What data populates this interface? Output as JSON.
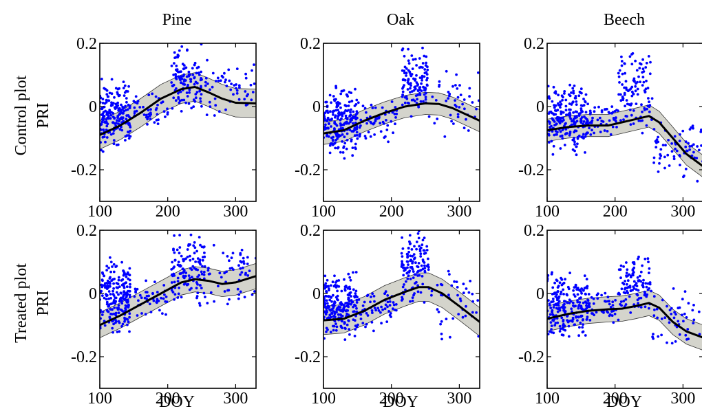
{
  "figure": {
    "columns": [
      "Pine",
      "Oak",
      "Beech"
    ],
    "rows": [
      {
        "line1": "Control plot",
        "line2": "PRI"
      },
      {
        "line1": "Treated plot",
        "line2": "PRI"
      }
    ],
    "xlabel": "DOY",
    "colors": {
      "points": "#0000ff",
      "band_fill": "#d4d4cc",
      "band_edge": "#333333",
      "fit_line": "#000000"
    }
  },
  "chart_data": [
    {
      "type": "scatter",
      "species": "Pine",
      "plot": "Control plot",
      "xlim": [
        100,
        330
      ],
      "ylim": [
        -0.3,
        0.2
      ],
      "xticks": [
        100,
        200,
        300
      ],
      "yticks": [
        -0.2,
        0,
        0.2
      ],
      "ytick_labels": [
        "-0.2",
        "0",
        "0.2"
      ],
      "fit": {
        "x": [
          100,
          130,
          160,
          190,
          220,
          240,
          260,
          280,
          300,
          330
        ],
        "y": [
          -0.09,
          -0.06,
          -0.02,
          0.025,
          0.055,
          0.062,
          0.045,
          0.025,
          0.012,
          0.01
        ],
        "band": 0.045
      },
      "clusters": [
        {
          "x": [
            100,
            145
          ],
          "y": [
            -0.15,
            0.09
          ],
          "n": 200
        },
        {
          "x": [
            150,
            200
          ],
          "y": [
            -0.08,
            0.05
          ],
          "n": 45
        },
        {
          "x": [
            205,
            250
          ],
          "y": [
            -0.02,
            0.2
          ],
          "n": 120
        },
        {
          "x": [
            255,
            330
          ],
          "y": [
            -0.04,
            0.17
          ],
          "n": 55
        }
      ]
    },
    {
      "type": "scatter",
      "species": "Oak",
      "plot": "Control plot",
      "xlim": [
        100,
        330
      ],
      "ylim": [
        -0.3,
        0.2
      ],
      "xticks": [
        100,
        200,
        300
      ],
      "yticks": [
        -0.2,
        0,
        0.2
      ],
      "ytick_labels": [
        "-0.2",
        "0",
        "0.2"
      ],
      "fit": {
        "x": [
          100,
          130,
          160,
          190,
          220,
          250,
          270,
          290,
          310,
          330
        ],
        "y": [
          -0.085,
          -0.075,
          -0.045,
          -0.02,
          0.0,
          0.01,
          0.008,
          -0.005,
          -0.025,
          -0.045
        ],
        "band": 0.035
      },
      "clusters": [
        {
          "x": [
            100,
            150
          ],
          "y": [
            -0.17,
            0.07
          ],
          "n": 220
        },
        {
          "x": [
            150,
            210
          ],
          "y": [
            -0.12,
            0.03
          ],
          "n": 60
        },
        {
          "x": [
            215,
            255
          ],
          "y": [
            -0.04,
            0.2
          ],
          "n": 120
        },
        {
          "x": [
            255,
            330
          ],
          "y": [
            -0.12,
            0.14
          ],
          "n": 45
        }
      ]
    },
    {
      "type": "scatter",
      "species": "Beech",
      "plot": "Control plot",
      "xlim": [
        100,
        330
      ],
      "ylim": [
        -0.3,
        0.2
      ],
      "xticks": [
        100,
        200,
        300
      ],
      "yticks": [
        -0.2,
        0,
        0.2
      ],
      "ytick_labels": [
        "-0.2",
        "0",
        "0.2"
      ],
      "fit": {
        "x": [
          100,
          130,
          160,
          190,
          210,
          230,
          250,
          265,
          285,
          305,
          330
        ],
        "y": [
          -0.075,
          -0.065,
          -0.06,
          -0.06,
          -0.05,
          -0.04,
          -0.03,
          -0.05,
          -0.1,
          -0.15,
          -0.19
        ],
        "band": 0.035
      },
      "clusters": [
        {
          "x": [
            100,
            160
          ],
          "y": [
            -0.16,
            0.08
          ],
          "n": 220
        },
        {
          "x": [
            160,
            205
          ],
          "y": [
            -0.1,
            0.02
          ],
          "n": 50
        },
        {
          "x": [
            205,
            255
          ],
          "y": [
            -0.1,
            0.2
          ],
          "n": 110
        },
        {
          "x": [
            255,
            330
          ],
          "y": [
            -0.25,
            -0.02
          ],
          "n": 70
        }
      ]
    },
    {
      "type": "scatter",
      "species": "Pine",
      "plot": "Treated plot",
      "xlim": [
        100,
        330
      ],
      "ylim": [
        -0.3,
        0.2
      ],
      "xticks": [
        100,
        200,
        300
      ],
      "yticks": [
        -0.2,
        0,
        0.2
      ],
      "ytick_labels": [
        "-0.2",
        "0",
        "0.2"
      ],
      "fit": {
        "x": [
          100,
          130,
          160,
          190,
          220,
          240,
          260,
          280,
          300,
          330
        ],
        "y": [
          -0.1,
          -0.07,
          -0.035,
          0.0,
          0.035,
          0.045,
          0.04,
          0.03,
          0.035,
          0.055
        ],
        "band": 0.04
      },
      "clusters": [
        {
          "x": [
            100,
            145
          ],
          "y": [
            -0.14,
            0.12
          ],
          "n": 210
        },
        {
          "x": [
            150,
            200
          ],
          "y": [
            -0.08,
            0.05
          ],
          "n": 45
        },
        {
          "x": [
            205,
            255
          ],
          "y": [
            -0.05,
            0.2
          ],
          "n": 130
        },
        {
          "x": [
            255,
            330
          ],
          "y": [
            -0.04,
            0.17
          ],
          "n": 55
        }
      ]
    },
    {
      "type": "scatter",
      "species": "Oak",
      "plot": "Treated plot",
      "xlim": [
        100,
        330
      ],
      "ylim": [
        -0.3,
        0.2
      ],
      "xticks": [
        100,
        200,
        300
      ],
      "yticks": [
        -0.2,
        0,
        0.2
      ],
      "ytick_labels": [
        "-0.2",
        "0",
        "0.2"
      ],
      "fit": {
        "x": [
          100,
          130,
          160,
          190,
          220,
          240,
          255,
          275,
          300,
          330
        ],
        "y": [
          -0.085,
          -0.08,
          -0.055,
          -0.02,
          0.005,
          0.02,
          0.02,
          0.0,
          -0.04,
          -0.09
        ],
        "band": 0.045
      },
      "clusters": [
        {
          "x": [
            100,
            150
          ],
          "y": [
            -0.17,
            0.08
          ],
          "n": 220
        },
        {
          "x": [
            150,
            210
          ],
          "y": [
            -0.12,
            0.03
          ],
          "n": 60
        },
        {
          "x": [
            215,
            255
          ],
          "y": [
            -0.04,
            0.2
          ],
          "n": 125
        },
        {
          "x": [
            255,
            330
          ],
          "y": [
            -0.15,
            0.1
          ],
          "n": 45
        }
      ]
    },
    {
      "type": "scatter",
      "species": "Beech",
      "plot": "Treated plot",
      "xlim": [
        100,
        330
      ],
      "ylim": [
        -0.3,
        0.2
      ],
      "xticks": [
        100,
        200,
        300
      ],
      "yticks": [
        -0.2,
        0,
        0.2
      ],
      "ytick_labels": [
        "-0.2",
        "0",
        "0.2"
      ],
      "fit": {
        "x": [
          100,
          130,
          160,
          190,
          210,
          230,
          250,
          265,
          285,
          305,
          330
        ],
        "y": [
          -0.08,
          -0.065,
          -0.055,
          -0.05,
          -0.048,
          -0.04,
          -0.03,
          -0.045,
          -0.09,
          -0.12,
          -0.14
        ],
        "band": 0.04
      },
      "clusters": [
        {
          "x": [
            100,
            160
          ],
          "y": [
            -0.15,
            0.07
          ],
          "n": 220
        },
        {
          "x": [
            160,
            205
          ],
          "y": [
            -0.1,
            0.02
          ],
          "n": 50
        },
        {
          "x": [
            205,
            255
          ],
          "y": [
            -0.08,
            0.13
          ],
          "n": 110
        },
        {
          "x": [
            255,
            330
          ],
          "y": [
            -0.18,
            0.02
          ],
          "n": 50
        }
      ]
    }
  ]
}
